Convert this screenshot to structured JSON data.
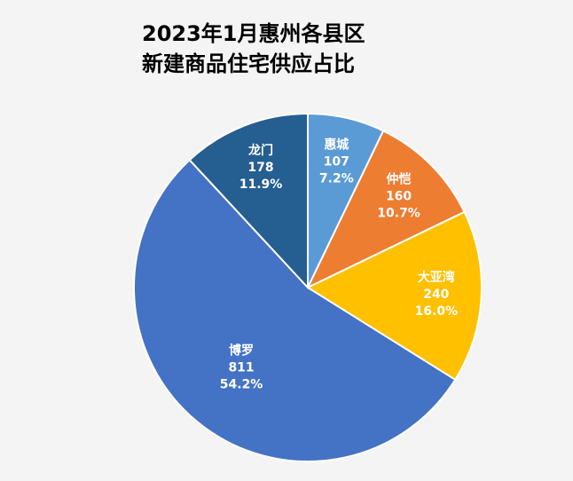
{
  "chart_data": {
    "type": "pie",
    "title_lines": [
      "2023年1月惠州各县区",
      "新建商品住宅供应占比"
    ],
    "categories": [
      "惠城",
      "仲恺",
      "大亚湾",
      "博罗",
      "龙门"
    ],
    "values": [
      107,
      160,
      240,
      811,
      178
    ],
    "percent_labels": [
      "7.2%",
      "10.7%",
      "16.0%",
      "54.2%",
      "11.9%"
    ],
    "colors": [
      "#5b9bd5",
      "#ed7d31",
      "#ffc000",
      "#4472c4",
      "#255e91"
    ]
  }
}
